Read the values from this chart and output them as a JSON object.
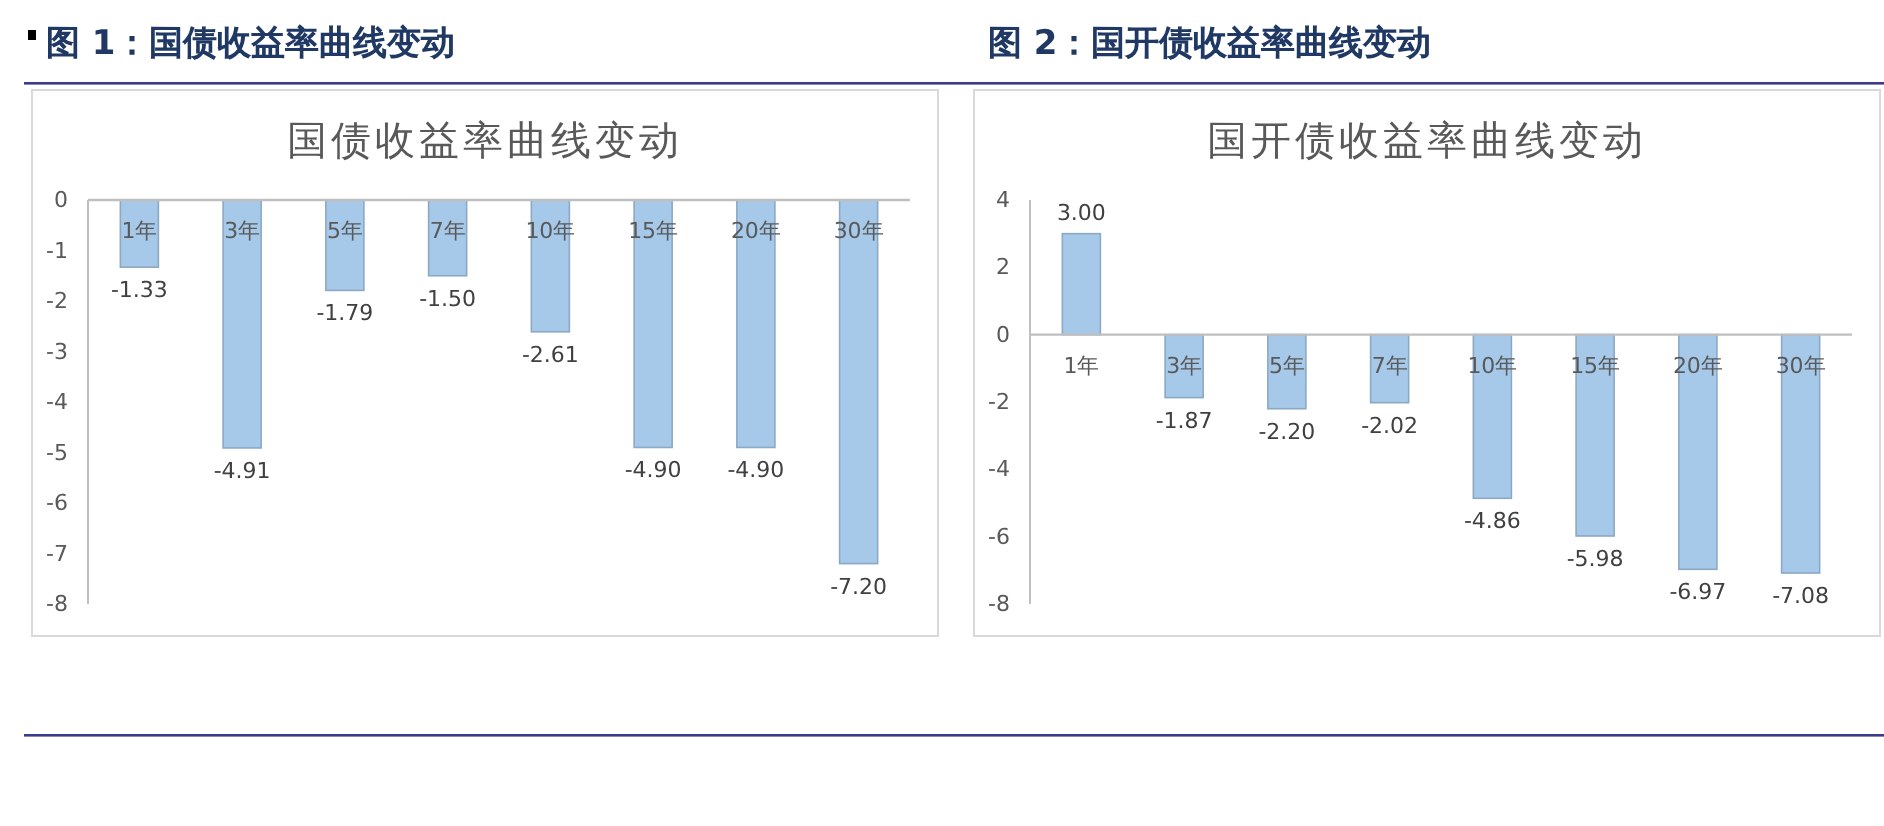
{
  "chart_data": [
    {
      "type": "bar",
      "title": "图 1：国债收益率曲线变动",
      "subtitle": "国债收益率曲线变动",
      "categories": [
        "1年",
        "3年",
        "5年",
        "7年",
        "10年",
        "15年",
        "20年",
        "30年"
      ],
      "values": [
        -1.33,
        -4.91,
        -1.79,
        -1.5,
        -2.61,
        -4.9,
        -4.9,
        -7.2
      ],
      "value_labels": [
        "-1.33",
        "-4.91",
        "-1.79",
        "-1.50",
        "-2.61",
        "-4.90",
        "-4.90",
        "-7.20"
      ],
      "color": "#a6c9ea",
      "ylim": [
        -8,
        0
      ],
      "yticks": [
        -8,
        -7,
        -6,
        -5,
        -4,
        -3,
        -2,
        -1,
        0
      ]
    },
    {
      "type": "bar",
      "title": "图 2：国开债收益率曲线变动",
      "subtitle": "国开债收益率曲线变动",
      "categories": [
        "1年",
        "3年",
        "5年",
        "7年",
        "10年",
        "15年",
        "20年",
        "30年"
      ],
      "values": [
        3,
        -1.87,
        -2.2,
        -2.02,
        -4.86,
        -5.98,
        -6.97,
        -7.08
      ],
      "value_labels": [
        "3.00",
        "-1.87",
        "-2.20",
        "-2.02",
        "-4.86",
        "-5.98",
        "-6.97",
        "-7.08"
      ],
      "color": "#a6c9ea",
      "ylim": [
        -8,
        4
      ],
      "yticks": [
        -8,
        -6,
        -4,
        -2,
        0,
        2,
        4
      ]
    }
  ]
}
